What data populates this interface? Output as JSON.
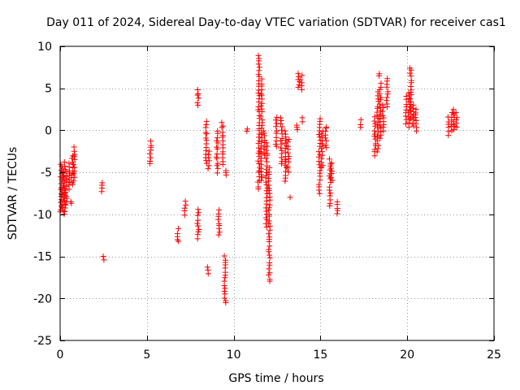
{
  "chart_data": {
    "type": "scatter",
    "title": "Day 011 of 2024, Sidereal Day-to-day VTEC variation (SDTVAR) for receiver cas1",
    "xlabel": "GPS time / hours",
    "ylabel": "SDTVAR / TECUs",
    "xlim": [
      0,
      25
    ],
    "ylim": [
      -25,
      10
    ],
    "xticks": [
      0,
      5,
      10,
      15,
      20,
      25
    ],
    "yticks": [
      -25,
      -20,
      -15,
      -10,
      -5,
      0,
      5,
      10
    ],
    "grid": true,
    "marker": "+",
    "color": "#ff0000",
    "clusters": [
      {
        "x": 0.05,
        "y0": -9.8,
        "y1": -4.0
      },
      {
        "x": 0.15,
        "y0": -9.5,
        "y1": -4.5
      },
      {
        "x": 0.25,
        "y0": -10.0,
        "y1": -3.8
      },
      {
        "x": 0.35,
        "y0": -9.0,
        "y1": -5.0
      },
      {
        "x": 0.55,
        "y0": -7.0,
        "y1": -4.0
      },
      {
        "x": 0.7,
        "y0": -6.5,
        "y1": -3.0
      },
      {
        "x": 0.8,
        "y0": -6.0,
        "y1": -2.0
      },
      {
        "x": 0.62,
        "y0": -8.8,
        "y1": -8.4
      },
      {
        "x": 2.4,
        "y0": -7.2,
        "y1": -6.2
      },
      {
        "x": 2.5,
        "y0": -15.3,
        "y1": -15.0
      },
      {
        "x": 5.2,
        "y0": -4.0,
        "y1": -1.3
      },
      {
        "x": 6.8,
        "y0": -13.3,
        "y1": -11.8
      },
      {
        "x": 7.2,
        "y0": -10.0,
        "y1": -8.5
      },
      {
        "x": 7.95,
        "y0": 3.0,
        "y1": 4.8
      },
      {
        "x": 7.95,
        "y0": -12.8,
        "y1": -9.5
      },
      {
        "x": 8.4,
        "y0": -4.0,
        "y1": 1.0
      },
      {
        "x": 8.55,
        "y0": -4.5,
        "y1": -2.5
      },
      {
        "x": 8.5,
        "y0": -17.0,
        "y1": -16.2
      },
      {
        "x": 9.05,
        "y0": -5.0,
        "y1": 0.0
      },
      {
        "x": 9.15,
        "y0": -12.5,
        "y1": -9.5
      },
      {
        "x": 9.35,
        "y0": -4.0,
        "y1": 1.0
      },
      {
        "x": 9.5,
        "y0": -20.6,
        "y1": -15.0
      },
      {
        "x": 9.55,
        "y0": -5.3,
        "y1": -4.7
      },
      {
        "x": 10.8,
        "y0": 0.0,
        "y1": 0.2
      },
      {
        "x": 11.45,
        "y0": -7.0,
        "y1": 9.0
      },
      {
        "x": 11.6,
        "y0": -6.0,
        "y1": 6.0
      },
      {
        "x": 11.75,
        "y0": -3.0,
        "y1": 0.0
      },
      {
        "x": 11.9,
        "y0": -11.5,
        "y1": -1.5
      },
      {
        "x": 12.05,
        "y0": -18.0,
        "y1": -4.5
      },
      {
        "x": 12.45,
        "y0": -2.0,
        "y1": 1.5
      },
      {
        "x": 12.75,
        "y0": -4.0,
        "y1": 1.5
      },
      {
        "x": 13.0,
        "y0": -6.0,
        "y1": 0.0
      },
      {
        "x": 13.15,
        "y0": -5.0,
        "y1": -1.0
      },
      {
        "x": 13.25,
        "y0": -8.0,
        "y1": -8.0
      },
      {
        "x": 13.75,
        "y0": 5.0,
        "y1": 6.8
      },
      {
        "x": 13.9,
        "y0": 4.8,
        "y1": 6.5
      },
      {
        "x": 13.65,
        "y0": 0.0,
        "y1": 0.6
      },
      {
        "x": 14.0,
        "y0": 1.0,
        "y1": 1.5
      },
      {
        "x": 14.95,
        "y0": -7.5,
        "y1": 1.5
      },
      {
        "x": 15.1,
        "y0": -4.5,
        "y1": 0.0
      },
      {
        "x": 15.3,
        "y0": -2.0,
        "y1": 0.5
      },
      {
        "x": 15.55,
        "y0": -9.0,
        "y1": -3.5
      },
      {
        "x": 15.65,
        "y0": -6.0,
        "y1": -4.0
      },
      {
        "x": 15.95,
        "y0": -10.0,
        "y1": -8.5
      },
      {
        "x": 17.3,
        "y0": 0.3,
        "y1": 1.2
      },
      {
        "x": 18.15,
        "y0": -3.0,
        "y1": 1.5
      },
      {
        "x": 18.3,
        "y0": -2.5,
        "y1": 4.5
      },
      {
        "x": 18.45,
        "y0": -1.0,
        "y1": 5.5
      },
      {
        "x": 18.6,
        "y0": 0.0,
        "y1": 3.0
      },
      {
        "x": 18.35,
        "y0": 6.5,
        "y1": 6.7
      },
      {
        "x": 18.85,
        "y0": 2.8,
        "y1": 6.2
      },
      {
        "x": 19.95,
        "y0": 0.8,
        "y1": 4.0
      },
      {
        "x": 20.1,
        "y0": 0.5,
        "y1": 4.5
      },
      {
        "x": 20.2,
        "y0": 1.5,
        "y1": 7.5
      },
      {
        "x": 20.35,
        "y0": 0.5,
        "y1": 3.0
      },
      {
        "x": 20.5,
        "y0": 0.0,
        "y1": 2.5
      },
      {
        "x": 22.35,
        "y0": -0.5,
        "y1": 1.5
      },
      {
        "x": 22.55,
        "y0": 0.0,
        "y1": 2.0
      },
      {
        "x": 22.7,
        "y0": 0.0,
        "y1": 2.5
      },
      {
        "x": 22.85,
        "y0": 0.5,
        "y1": 2.0
      }
    ]
  }
}
